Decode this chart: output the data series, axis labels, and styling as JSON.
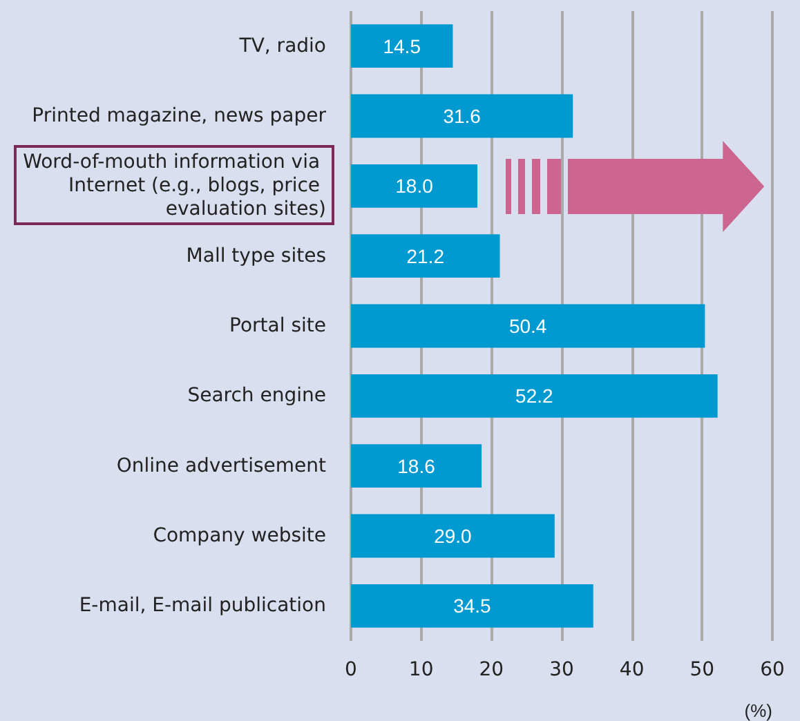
{
  "chart_data": {
    "type": "bar",
    "orientation": "horizontal",
    "categories": [
      "TV, radio",
      "Printed magazine, news paper",
      "Word-of-mouth information via Internet (e.g., blogs, price evaluation sites)",
      "Mall type sites",
      "Portal site",
      "Search engine",
      "Online advertisement",
      "Company website",
      "E-mail, E-mail publication"
    ],
    "values": [
      14.5,
      31.6,
      18.0,
      21.2,
      50.4,
      52.2,
      18.6,
      29.0,
      34.5
    ],
    "value_labels": [
      "14.5",
      "31.6",
      "18.0",
      "21.2",
      "50.4",
      "52.2",
      "18.6",
      "29.0",
      "34.5"
    ],
    "color": "#0099d0",
    "xlabel": "(%)",
    "xlim": [
      0,
      60
    ],
    "xticks": [
      0,
      10,
      20,
      30,
      40,
      50,
      60
    ],
    "grid": "x"
  }
}
